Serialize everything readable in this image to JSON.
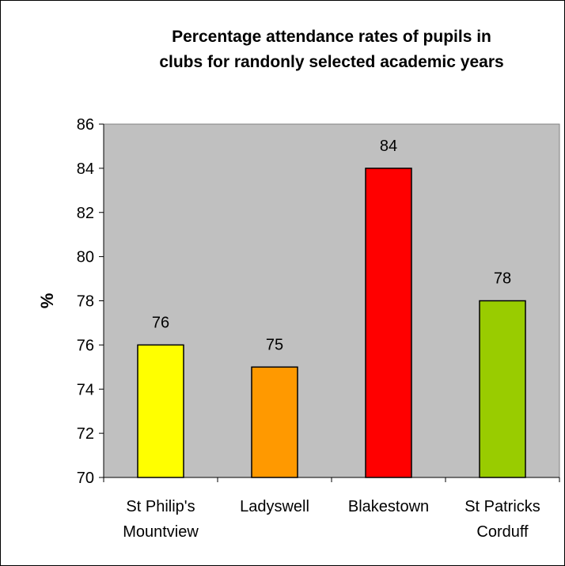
{
  "chart_data": {
    "type": "bar",
    "title": [
      "Percentage attendance rates of pupils in",
      "clubs for randonly selected academic years"
    ],
    "xlabel": "",
    "ylabel": "%",
    "categories": [
      [
        "St Philip's",
        "Mountview"
      ],
      [
        "Ladyswell"
      ],
      [
        "Blakestown"
      ],
      [
        "St Patricks",
        "Corduff"
      ]
    ],
    "values": [
      76,
      75,
      84,
      78
    ],
    "data_labels": [
      "76",
      "75",
      "84",
      "78"
    ],
    "bar_colors": [
      "#FFFF00",
      "#FF9900",
      "#FF0000",
      "#99CC00"
    ],
    "ylim": [
      70,
      86
    ],
    "yticks": [
      70,
      72,
      74,
      76,
      78,
      80,
      82,
      84,
      86
    ],
    "ytick_labels": [
      "70",
      "72",
      "74",
      "76",
      "78",
      "80",
      "82",
      "84",
      "86"
    ],
    "plot_background": "#C0C0C0",
    "grid": false,
    "legend": "none"
  }
}
